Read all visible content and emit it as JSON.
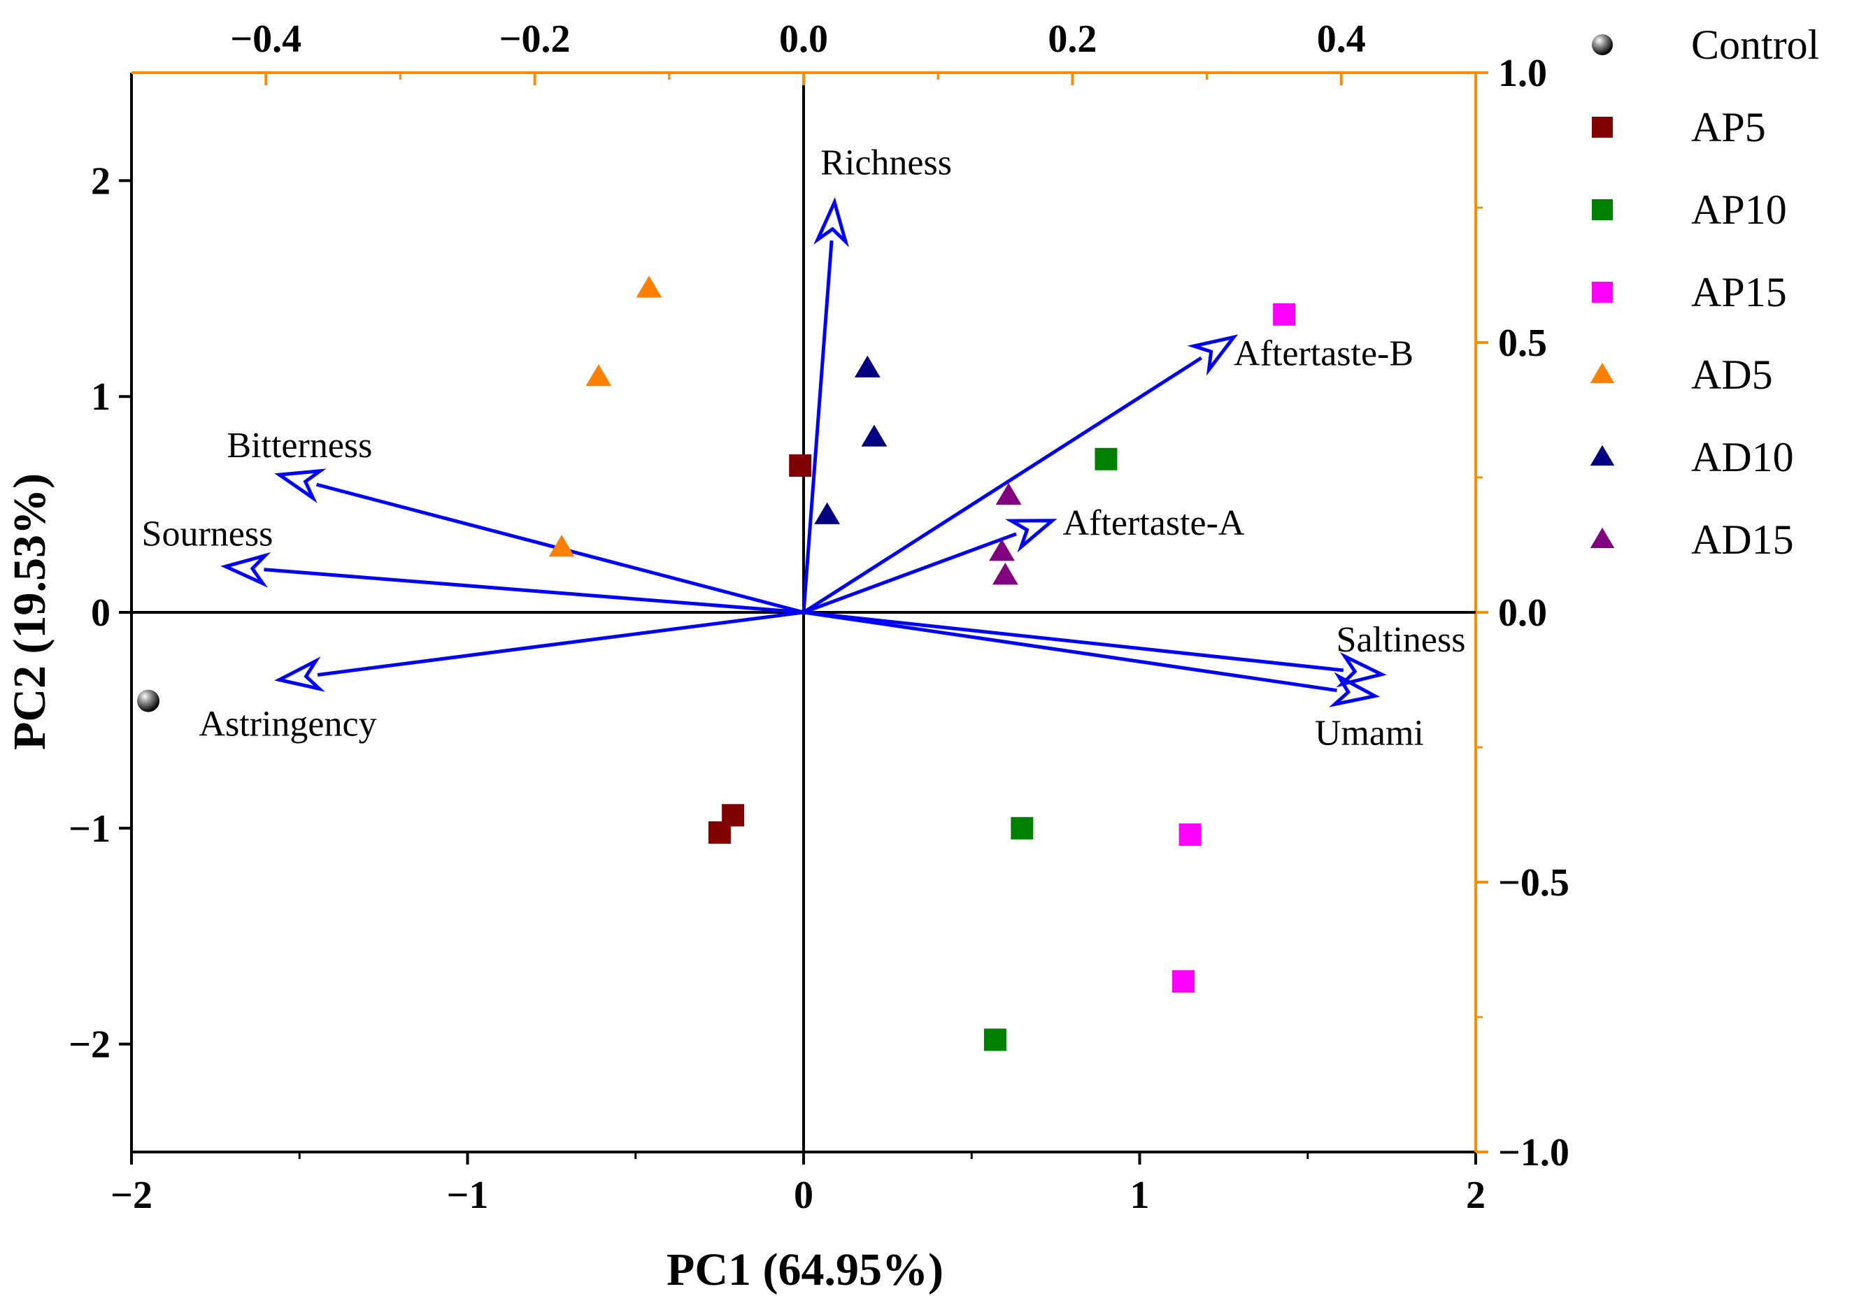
{
  "chart_data": {
    "type": "scatter",
    "subtype": "pca-biplot",
    "xlabel": "PC1 (64.95%)",
    "ylabel": "PC2 (19.53%)",
    "scores_axes": {
      "xlim": [
        -2,
        2
      ],
      "ylim": [
        -2.5,
        2.5
      ],
      "x_ticks": [
        -2,
        -1,
        0,
        1,
        2
      ],
      "x_tick_labels": [
        "−2",
        "−1",
        "0",
        "1",
        "2"
      ],
      "y_ticks": [
        -2,
        -1,
        0,
        1,
        2
      ],
      "y_tick_labels": [
        "−2",
        "−1",
        "0",
        "1",
        "2"
      ]
    },
    "loadings_axes": {
      "color": "#ff8c00",
      "xlim": [
        -0.5,
        0.5
      ],
      "ylim": [
        -1.0,
        1.0
      ],
      "x_ticks": [
        -0.4,
        -0.2,
        0.0,
        0.2,
        0.4
      ],
      "x_tick_labels": [
        "−0.4",
        "−0.2",
        "0.0",
        "0.2",
        "0.4"
      ],
      "y_ticks": [
        -1.0,
        -0.5,
        0.0,
        0.5,
        1.0
      ],
      "y_tick_labels": [
        "−1.0",
        "−0.5",
        "0.0",
        "0.5",
        "1.0"
      ]
    },
    "series": [
      {
        "name": "Control",
        "marker": "sphere",
        "color": "#000000",
        "points": [
          [
            -1.95,
            -0.41
          ]
        ]
      },
      {
        "name": "AP5",
        "marker": "square",
        "color": "#800000",
        "points": [
          [
            -0.01,
            0.68
          ],
          [
            -0.25,
            -1.02
          ],
          [
            -0.21,
            -0.94
          ]
        ]
      },
      {
        "name": "AP10",
        "marker": "square",
        "color": "#008000",
        "points": [
          [
            0.9,
            0.71
          ],
          [
            0.65,
            -1.0
          ],
          [
            0.57,
            -1.98
          ]
        ]
      },
      {
        "name": "AP15",
        "marker": "square",
        "color": "#ff00ff",
        "points": [
          [
            1.43,
            1.38
          ],
          [
            1.15,
            -1.03
          ],
          [
            1.13,
            -1.71
          ]
        ]
      },
      {
        "name": "AD5",
        "marker": "triangle",
        "color": "#ff8000",
        "points": [
          [
            -0.46,
            1.5
          ],
          [
            -0.61,
            1.09
          ],
          [
            -0.72,
            0.3
          ]
        ]
      },
      {
        "name": "AD10",
        "marker": "triangle",
        "color": "#000080",
        "points": [
          [
            0.19,
            1.13
          ],
          [
            0.21,
            0.81
          ],
          [
            0.07,
            0.45
          ]
        ]
      },
      {
        "name": "AD15",
        "marker": "triangle",
        "color": "#800080",
        "points": [
          [
            0.61,
            0.54
          ],
          [
            0.59,
            0.28
          ],
          [
            0.6,
            0.17
          ]
        ]
      }
    ],
    "loadings": [
      {
        "name": "Richness",
        "x": 0.023,
        "y": 0.76
      },
      {
        "name": "Aftertaste-B",
        "x": 0.32,
        "y": 0.51
      },
      {
        "name": "Aftertaste-A",
        "x": 0.185,
        "y": 0.17
      },
      {
        "name": "Saltiness",
        "x": 0.43,
        "y": -0.115
      },
      {
        "name": "Umami",
        "x": 0.425,
        "y": -0.155
      },
      {
        "name": "Bitterness",
        "x": -0.39,
        "y": 0.255
      },
      {
        "name": "Sourness",
        "x": -0.43,
        "y": 0.085
      },
      {
        "name": "Astringency",
        "x": -0.39,
        "y": -0.125
      }
    ],
    "arrow_color": "#0000ff",
    "legend_position": "right"
  }
}
